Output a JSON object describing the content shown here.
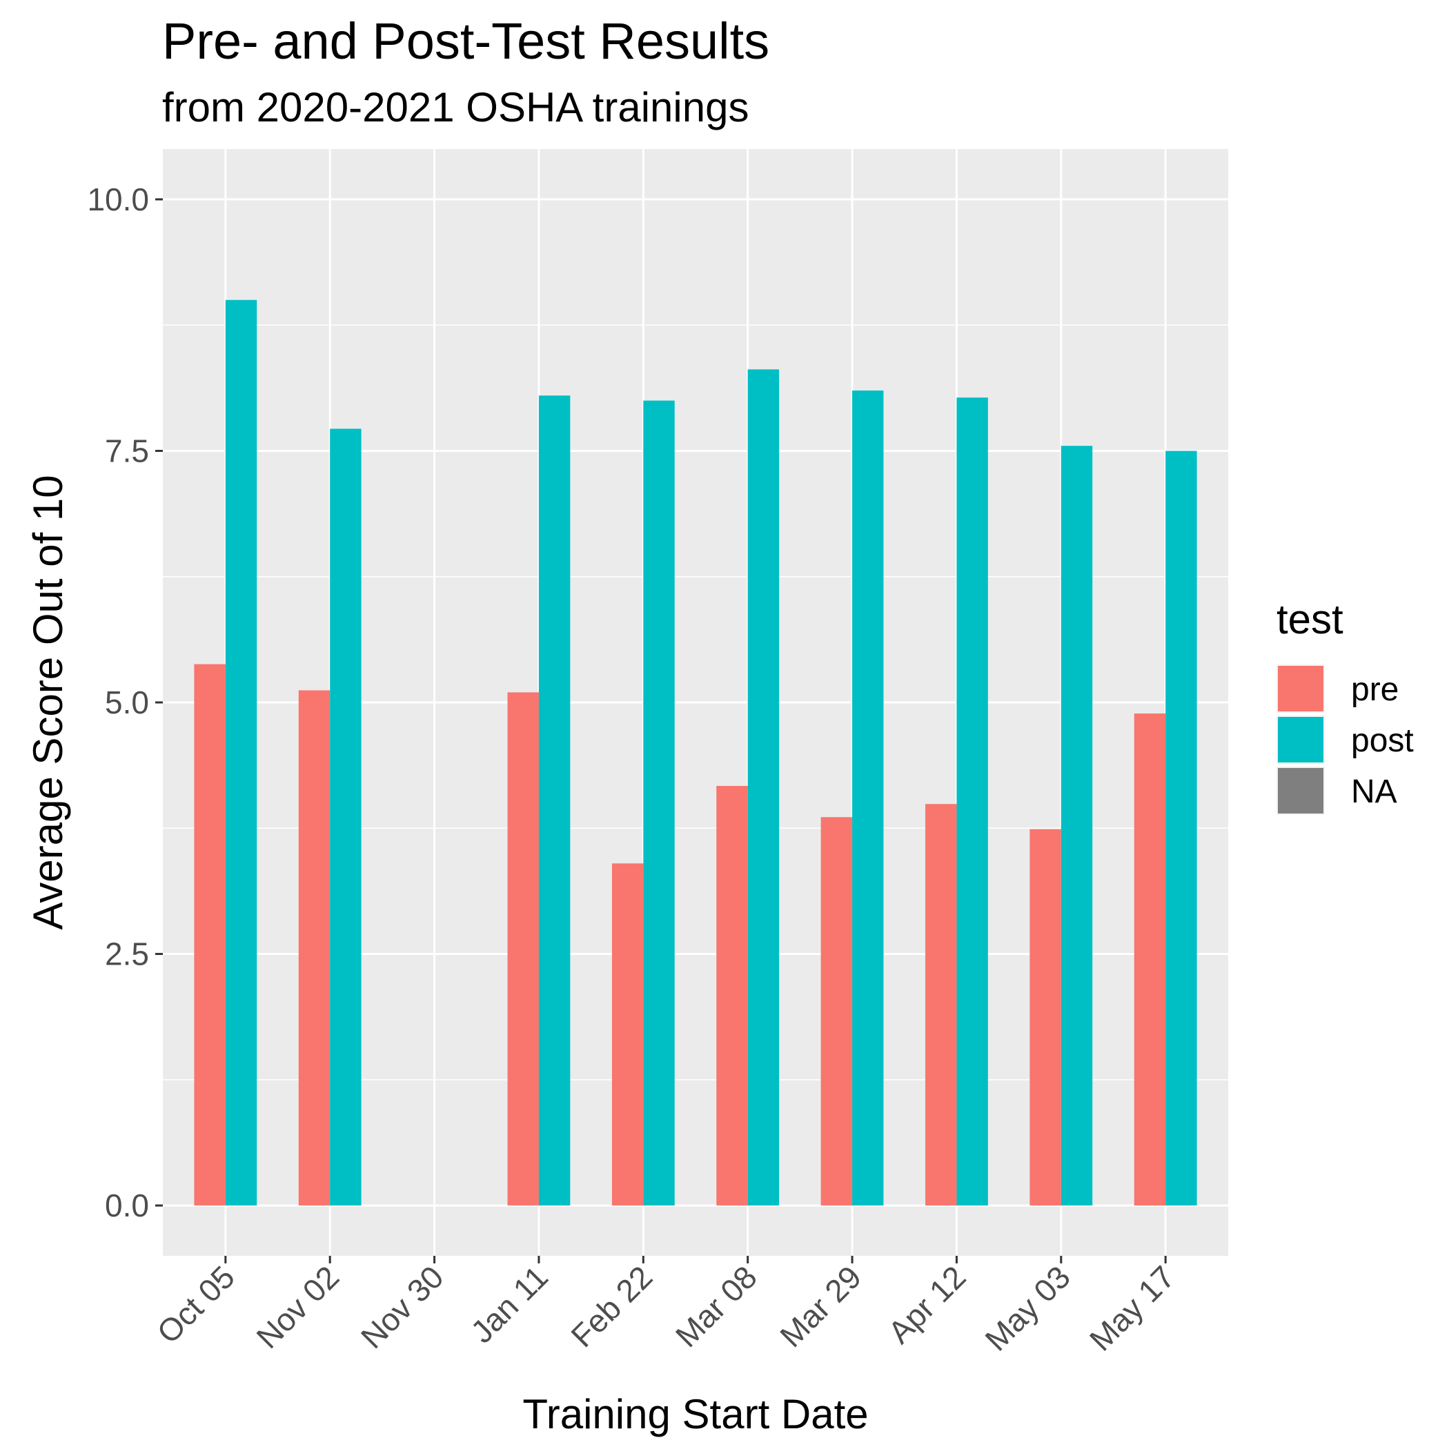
{
  "chart_data": {
    "type": "bar",
    "title": "Pre- and Post-Test Results",
    "subtitle": "from 2020-2021 OSHA trainings",
    "xlabel": "Training Start Date",
    "ylabel": "Average Score Out of 10",
    "categories": [
      "Oct 05",
      "Nov 02",
      "Nov 30",
      "Jan 11",
      "Feb 22",
      "Mar 08",
      "Mar 29",
      "Apr 12",
      "May 03",
      "May 17"
    ],
    "series": [
      {
        "name": "pre",
        "color": "#F8766D",
        "values": [
          5.38,
          5.12,
          null,
          5.1,
          3.4,
          4.17,
          3.86,
          3.99,
          3.74,
          4.89
        ]
      },
      {
        "name": "post",
        "color": "#00BFC4",
        "values": [
          9.0,
          7.72,
          null,
          8.05,
          8.0,
          8.31,
          8.1,
          8.03,
          7.55,
          7.5
        ]
      }
    ],
    "legend": {
      "title": "test",
      "position": "right",
      "entries": [
        {
          "label": "pre",
          "color": "#F8766D"
        },
        {
          "label": "post",
          "color": "#00BFC4"
        },
        {
          "label": "NA",
          "color": "#7F7F7F"
        }
      ]
    },
    "yticks": [
      "0.0",
      "2.5",
      "5.0",
      "7.5",
      "10.0"
    ],
    "ylim": [
      -0.5,
      10.5
    ],
    "grid": true,
    "panel_color": "#EBEBEB"
  }
}
